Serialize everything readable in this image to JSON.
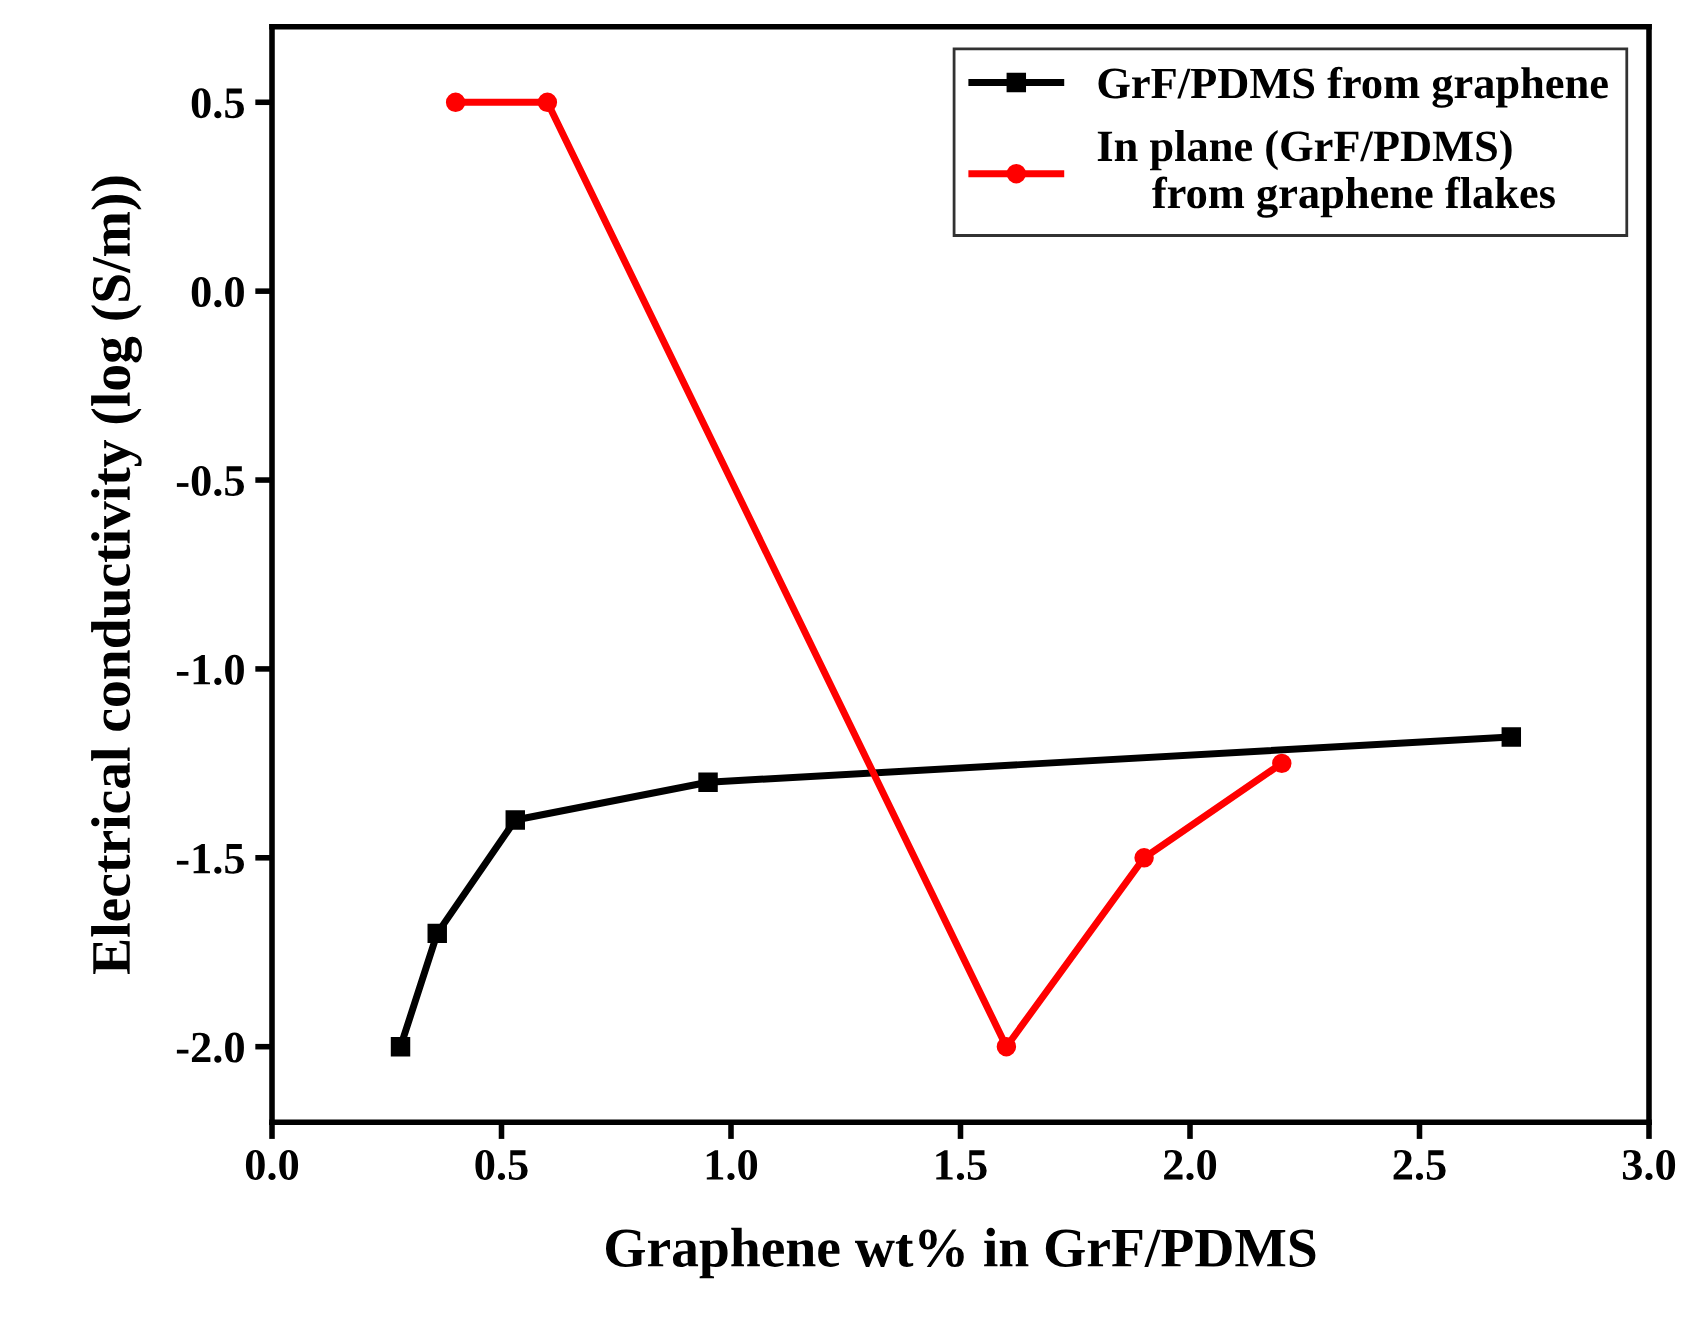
{
  "chart_data": {
    "type": "line",
    "xlabel": "Graphene wt% in GrF/PDMS",
    "ylabel": "Electrical conductivity (log (S/m))",
    "xlim": [
      0,
      3.0
    ],
    "ylim": [
      -2.2,
      0.7
    ],
    "xticks": [
      {
        "value": 0,
        "label": "0.0"
      },
      {
        "value": 0.5,
        "label": "0.5"
      },
      {
        "value": 1,
        "label": "1.0"
      },
      {
        "value": 1.5,
        "label": "1.5"
      },
      {
        "value": 2,
        "label": "2.0"
      },
      {
        "value": 2.5,
        "label": "2.5"
      },
      {
        "value": 3,
        "label": "3.0"
      }
    ],
    "yticks": [
      {
        "value": 0.5,
        "label": "0.5"
      },
      {
        "value": 0,
        "label": "0.0"
      },
      {
        "value": -0.5,
        "label": "-0.5"
      },
      {
        "value": -1,
        "label": "-1.0"
      },
      {
        "value": -1.5,
        "label": "-1.5"
      },
      {
        "value": -2,
        "label": "-2.0"
      }
    ],
    "legend": "top right",
    "grid": false,
    "series": [
      {
        "name": "GrF/PDMS from graphene",
        "color": "#000000",
        "marker": "square",
        "x": [
          0.28,
          0.36,
          0.53,
          0.95,
          2.7
        ],
        "values": [
          -2.0,
          -1.7,
          -1.4,
          -1.3,
          -1.18
        ]
      },
      {
        "name": "In plane (GrF/PDMS)\n     from graphene flakes",
        "color": "#ff0000",
        "marker": "circle",
        "x": [
          0.4,
          0.6,
          1.6,
          1.9,
          2.2
        ],
        "values": [
          0.5,
          0.5,
          -2.0,
          -1.5,
          -1.25
        ]
      }
    ]
  }
}
